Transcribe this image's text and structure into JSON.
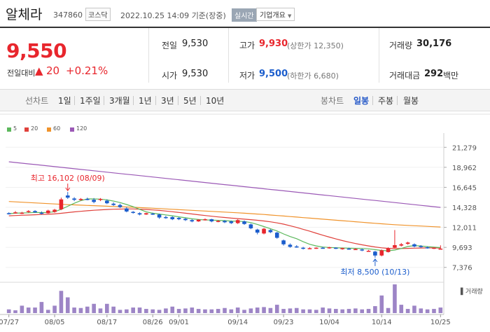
{
  "header": {
    "name": "알체라",
    "code": "347860",
    "market": "코스닥",
    "timestamp": "2022.10.25 14:09",
    "basis": "기준(장중)",
    "realtime_label": "실시간",
    "company_overview": "기업개요",
    "dropdown_icon": "chevron-down-icon"
  },
  "quote": {
    "price": "9,550",
    "change_label": "전일대비",
    "change": "20",
    "change_pct": "+0.21%",
    "arrow_icon": "triangle-up-icon",
    "prev_close_label": "전일",
    "prev_close": "9,530",
    "open_label": "시가",
    "open": "9,530",
    "high_label": "고가",
    "high": "9,930",
    "upper_limit": "(상한가 12,350)",
    "low_label": "저가",
    "low": "9,500",
    "lower_limit": "(하한가 6,680)",
    "volume_label": "거래량",
    "volume": "30,176",
    "amount_label": "거래대금",
    "amount": "292",
    "amount_unit": "백만",
    "colors": {
      "up": "#e8262d",
      "down": "#1b5dcc"
    }
  },
  "tabs": {
    "line_label": "선차트",
    "line_tabs": [
      "1일",
      "1주일",
      "3개월",
      "1년",
      "3년",
      "5년",
      "10년"
    ],
    "candle_label": "봉차트",
    "candle_tabs": [
      "일봉",
      "주봉",
      "월봉"
    ],
    "active_candle": "일봉"
  },
  "chart_data": {
    "type": "candlestick",
    "legend": [
      {
        "name": "5",
        "color": "#5cb85c"
      },
      {
        "name": "20",
        "color": "#e0413b"
      },
      {
        "name": "60",
        "color": "#f0932b"
      },
      {
        "name": "120",
        "color": "#9b59b6"
      }
    ],
    "y_ticks": [
      7376,
      9693,
      12011,
      14328,
      16645,
      18962,
      21279
    ],
    "ylim": [
      6220,
      22438
    ],
    "x_tick_labels": [
      "07/27",
      "08/05",
      "08/17",
      "08/26",
      "09/01",
      "09/14",
      "09/23",
      "10/04",
      "10/14",
      "10/25"
    ],
    "x_tick_index": [
      0,
      7,
      15,
      22,
      26,
      35,
      42,
      49,
      57,
      66
    ],
    "annotations": [
      {
        "label": "최고 16,102 (08/09)",
        "index": 9,
        "value": 16102
      },
      {
        "label": "최저 8,500 (10/13)",
        "index": 56,
        "value": 8500
      }
    ],
    "volume_label": "거래량",
    "candles": [
      {
        "o": 13650,
        "h": 13750,
        "l": 13500,
        "c": 13600
      },
      {
        "o": 13700,
        "h": 13900,
        "l": 13600,
        "c": 13750
      },
      {
        "o": 13650,
        "h": 13800,
        "l": 13550,
        "c": 13700
      },
      {
        "o": 13800,
        "h": 14000,
        "l": 13700,
        "c": 13900
      },
      {
        "o": 13900,
        "h": 14000,
        "l": 13700,
        "c": 13750
      },
      {
        "o": 13700,
        "h": 13850,
        "l": 13500,
        "c": 13600
      },
      {
        "o": 13650,
        "h": 14050,
        "l": 13600,
        "c": 13950
      },
      {
        "o": 13800,
        "h": 14150,
        "l": 13700,
        "c": 14050
      },
      {
        "o": 14100,
        "h": 15450,
        "l": 14000,
        "c": 15250
      },
      {
        "o": 15700,
        "h": 16102,
        "l": 15300,
        "c": 15450
      },
      {
        "o": 15350,
        "h": 15500,
        "l": 15050,
        "c": 15200
      },
      {
        "o": 15200,
        "h": 15400,
        "l": 15100,
        "c": 15300
      },
      {
        "o": 15300,
        "h": 15450,
        "l": 15150,
        "c": 15250
      },
      {
        "o": 15200,
        "h": 15400,
        "l": 14800,
        "c": 14950
      },
      {
        "o": 15200,
        "h": 15400,
        "l": 15050,
        "c": 15300
      },
      {
        "o": 15100,
        "h": 15250,
        "l": 14700,
        "c": 14800
      },
      {
        "o": 14750,
        "h": 14900,
        "l": 14500,
        "c": 14600
      },
      {
        "o": 14600,
        "h": 14750,
        "l": 14250,
        "c": 14350
      },
      {
        "o": 14200,
        "h": 14350,
        "l": 13750,
        "c": 13850
      },
      {
        "o": 13800,
        "h": 13900,
        "l": 13600,
        "c": 13700
      },
      {
        "o": 13650,
        "h": 13750,
        "l": 13400,
        "c": 13500
      },
      {
        "o": 13500,
        "h": 13700,
        "l": 13450,
        "c": 13650
      },
      {
        "o": 13600,
        "h": 13700,
        "l": 13450,
        "c": 13550
      },
      {
        "o": 13500,
        "h": 13600,
        "l": 13000,
        "c": 13150
      },
      {
        "o": 13200,
        "h": 13350,
        "l": 13000,
        "c": 13100
      },
      {
        "o": 13200,
        "h": 13300,
        "l": 12850,
        "c": 12950
      },
      {
        "o": 13100,
        "h": 13200,
        "l": 12850,
        "c": 12950
      },
      {
        "o": 13000,
        "h": 13100,
        "l": 12750,
        "c": 12850
      },
      {
        "o": 12850,
        "h": 12950,
        "l": 12600,
        "c": 12700
      },
      {
        "o": 12700,
        "h": 12950,
        "l": 12650,
        "c": 12900
      },
      {
        "o": 12900,
        "h": 13050,
        "l": 12800,
        "c": 12950
      },
      {
        "o": 12950,
        "h": 13000,
        "l": 12600,
        "c": 12700
      },
      {
        "o": 12700,
        "h": 12850,
        "l": 12600,
        "c": 12750
      },
      {
        "o": 12750,
        "h": 12850,
        "l": 12500,
        "c": 12600
      },
      {
        "o": 12700,
        "h": 12800,
        "l": 12400,
        "c": 12500
      },
      {
        "o": 12500,
        "h": 12950,
        "l": 12400,
        "c": 12850
      },
      {
        "o": 12700,
        "h": 12800,
        "l": 12300,
        "c": 12400
      },
      {
        "o": 12350,
        "h": 12450,
        "l": 11800,
        "c": 11900
      },
      {
        "o": 11750,
        "h": 11850,
        "l": 11200,
        "c": 11400
      },
      {
        "o": 11300,
        "h": 11950,
        "l": 11200,
        "c": 11850
      },
      {
        "o": 11700,
        "h": 11800,
        "l": 11350,
        "c": 11450
      },
      {
        "o": 11400,
        "h": 11500,
        "l": 10700,
        "c": 10800
      },
      {
        "o": 10500,
        "h": 10600,
        "l": 9900,
        "c": 10050
      },
      {
        "o": 10000,
        "h": 10150,
        "l": 9650,
        "c": 9750
      },
      {
        "o": 9800,
        "h": 9950,
        "l": 9650,
        "c": 9700
      },
      {
        "o": 9650,
        "h": 9750,
        "l": 9450,
        "c": 9550
      },
      {
        "o": 9600,
        "h": 9700,
        "l": 9500,
        "c": 9600
      },
      {
        "o": 9600,
        "h": 9700,
        "l": 9520,
        "c": 9650
      },
      {
        "o": 9650,
        "h": 9750,
        "l": 9550,
        "c": 9600
      },
      {
        "o": 9650,
        "h": 9750,
        "l": 9550,
        "c": 9700
      },
      {
        "o": 9650,
        "h": 9700,
        "l": 9500,
        "c": 9550
      },
      {
        "o": 9500,
        "h": 9650,
        "l": 9420,
        "c": 9600
      },
      {
        "o": 9550,
        "h": 9650,
        "l": 9450,
        "c": 9500
      },
      {
        "o": 9500,
        "h": 9600,
        "l": 9400,
        "c": 9500
      },
      {
        "o": 9450,
        "h": 9550,
        "l": 9250,
        "c": 9350
      },
      {
        "o": 9250,
        "h": 9400,
        "l": 9200,
        "c": 9300
      },
      {
        "o": 9200,
        "h": 9300,
        "l": 8500,
        "c": 8750
      },
      {
        "o": 8750,
        "h": 9450,
        "l": 8650,
        "c": 9350
      },
      {
        "o": 9150,
        "h": 9700,
        "l": 9100,
        "c": 9600
      },
      {
        "o": 9650,
        "h": 11700,
        "l": 9600,
        "c": 9950
      },
      {
        "o": 9900,
        "h": 10200,
        "l": 9800,
        "c": 10050
      },
      {
        "o": 10100,
        "h": 10350,
        "l": 10000,
        "c": 10250
      },
      {
        "o": 10050,
        "h": 10150,
        "l": 9700,
        "c": 9800
      },
      {
        "o": 9850,
        "h": 9950,
        "l": 9650,
        "c": 9750
      },
      {
        "o": 9700,
        "h": 9800,
        "l": 9550,
        "c": 9600
      },
      {
        "o": 9600,
        "h": 9700,
        "l": 9500,
        "c": 9650
      },
      {
        "o": 9530,
        "h": 9930,
        "l": 9500,
        "c": 9550
      }
    ],
    "volumes": [
      40,
      30,
      80,
      60,
      60,
      120,
      35,
      80,
      240,
      170,
      60,
      55,
      70,
      100,
      50,
      100,
      70,
      35,
      40,
      60,
      60,
      45,
      40,
      35,
      50,
      70,
      45,
      50,
      60,
      45,
      40,
      40,
      45,
      55,
      40,
      60,
      35,
      50,
      60,
      65,
      55,
      90,
      45,
      50,
      55,
      40,
      40,
      35,
      60,
      50,
      45,
      40,
      45,
      50,
      40,
      45,
      75,
      190,
      55,
      310,
      90,
      45,
      80,
      50,
      40,
      45,
      60
    ],
    "ma": {
      "5": [
        13600,
        13650,
        13680,
        13700,
        13740,
        13720,
        13740,
        13820,
        14100,
        14450,
        14800,
        15100,
        15300,
        15300,
        15280,
        15200,
        15050,
        14880,
        14650,
        14400,
        14100,
        13800,
        13650,
        13550,
        13450,
        13350,
        13230,
        13120,
        13000,
        12920,
        12870,
        12850,
        12820,
        12790,
        12740,
        12720,
        12680,
        12560,
        12350,
        12100,
        11850,
        11600,
        11250,
        10950,
        10700,
        10350,
        10050,
        9860,
        9730,
        9680,
        9650,
        9620,
        9600,
        9580,
        9560,
        9520,
        9430,
        9330,
        9300,
        9380,
        9560,
        9800,
        9900,
        9850,
        9780,
        9720,
        9670
      ],
      "20": [
        13350,
        13380,
        13410,
        13440,
        13470,
        13500,
        13530,
        13570,
        13640,
        13720,
        13800,
        13870,
        13930,
        13990,
        14040,
        14080,
        14110,
        14130,
        14140,
        14140,
        14120,
        14080,
        14030,
        13970,
        13900,
        13820,
        13740,
        13650,
        13560,
        13470,
        13380,
        13300,
        13220,
        13150,
        13080,
        13020,
        12960,
        12900,
        12830,
        12750,
        12650,
        12530,
        12380,
        12200,
        12000,
        11780,
        11560,
        11330,
        11100,
        10880,
        10670,
        10480,
        10300,
        10140,
        9990,
        9860,
        9740,
        9640,
        9580,
        9560,
        9560,
        9580,
        9600,
        9620,
        9630,
        9630,
        9620
      ],
      "60": [
        15000,
        14960,
        14920,
        14880,
        14840,
        14800,
        14760,
        14720,
        14680,
        14640,
        14610,
        14580,
        14550,
        14520,
        14490,
        14460,
        14430,
        14400,
        14370,
        14340,
        14300,
        14260,
        14220,
        14180,
        14140,
        14100,
        14060,
        14020,
        13980,
        13940,
        13900,
        13860,
        13820,
        13780,
        13740,
        13700,
        13650,
        13600,
        13550,
        13500,
        13440,
        13380,
        13320,
        13260,
        13200,
        13140,
        13080,
        13020,
        12960,
        12900,
        12840,
        12780,
        12720,
        12660,
        12600,
        12540,
        12480,
        12420,
        12370,
        12320,
        12280,
        12240,
        12200,
        12160,
        12120,
        12080,
        12050
      ],
      "120": [
        19600,
        19520,
        19440,
        19360,
        19280,
        19200,
        19120,
        19040,
        18960,
        18880,
        18800,
        18720,
        18640,
        18560,
        18480,
        18400,
        18320,
        18240,
        18160,
        18080,
        18000,
        17920,
        17840,
        17760,
        17680,
        17600,
        17520,
        17440,
        17360,
        17280,
        17200,
        17120,
        17040,
        16960,
        16880,
        16800,
        16720,
        16640,
        16560,
        16480,
        16400,
        16320,
        16240,
        16160,
        16080,
        16000,
        15920,
        15840,
        15760,
        15680,
        15600,
        15520,
        15440,
        15360,
        15280,
        15200,
        15120,
        15040,
        14960,
        14880,
        14800,
        14720,
        14640,
        14560,
        14480,
        14400,
        14320
      ]
    }
  }
}
